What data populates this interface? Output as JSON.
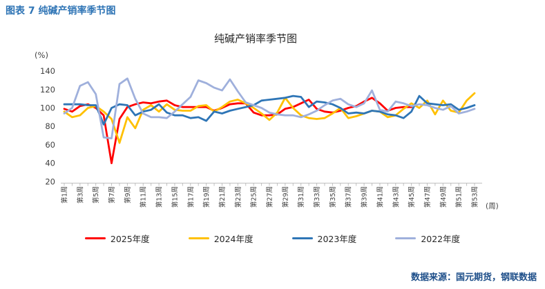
{
  "page": {
    "header": "图表 7 纯碱产销率季节图",
    "source_note": "数据来源：国元期货，钢联数据"
  },
  "colors": {
    "header_blue": "#2E74B5",
    "source_blue": "#1D4E89",
    "axis_gray": "#BFBFBF",
    "tick_text": "#404040",
    "title_text": "#262626"
  },
  "chart_data": {
    "type": "line",
    "title": "纯碱产销率季节图",
    "y_unit_label": "(%)",
    "x_unit_label": "(周)",
    "ylim": [
      20,
      140
    ],
    "y_ticks": [
      20,
      40,
      60,
      80,
      100,
      120,
      140
    ],
    "x_tick_labels": [
      "第1周",
      "第3周",
      "第5周",
      "第7周",
      "第9周",
      "第11周",
      "第13周",
      "第15周",
      "第17周",
      "第19周",
      "第21周",
      "第23周",
      "第25周",
      "第27周",
      "第29周",
      "第31周",
      "第33周",
      "第35周",
      "第37周",
      "第39周",
      "第41周",
      "第43周",
      "第45周",
      "第47周",
      "第49周",
      "第51周",
      "第53周"
    ],
    "x_weeks_total": 53,
    "grid": false,
    "legend_position": "bottom",
    "series": [
      {
        "name": "2025年度",
        "color": "#FF0000",
        "start_week": 1,
        "values": [
          99,
          96,
          102,
          104,
          100,
          92,
          40,
          88,
          101,
          104,
          106,
          105,
          107,
          108,
          103,
          101,
          101,
          101,
          101,
          97,
          100,
          104,
          105,
          105,
          95,
          92,
          92,
          93,
          99,
          101,
          105,
          109,
          99,
          96,
          95,
          97,
          100,
          102,
          107,
          111,
          105,
          97,
          100,
          101,
          101
        ]
      },
      {
        "name": "2024年度",
        "color": "#FFC000",
        "start_week": 1,
        "values": [
          96,
          90,
          92,
          100,
          102,
          96,
          88,
          62,
          90,
          78,
          98,
          103,
          96,
          104,
          98,
          97,
          97,
          102,
          103,
          96,
          101,
          107,
          109,
          105,
          100,
          94,
          87,
          95,
          111,
          100,
          92,
          89,
          88,
          89,
          94,
          100,
          89,
          91,
          94,
          97,
          96,
          90,
          92,
          99,
          105,
          100,
          108,
          93,
          108,
          97,
          95,
          108,
          116
        ]
      },
      {
        "name": "2023年度",
        "color": "#2E75B6",
        "start_week": 1,
        "values": [
          104,
          104,
          104,
          103,
          103,
          82,
          100,
          104,
          103,
          92,
          96,
          98,
          104,
          95,
          92,
          92,
          89,
          90,
          86,
          96,
          94,
          97,
          99,
          101,
          103,
          108,
          109,
          110,
          111,
          113,
          112,
          101,
          107,
          106,
          104,
          100,
          94,
          95,
          94,
          97,
          96,
          93,
          92,
          89,
          96,
          113,
          105,
          104,
          103,
          104,
          98,
          100,
          103
        ]
      },
      {
        "name": "2022年度",
        "color": "#9FB0DC",
        "start_week": 1,
        "values": [
          94,
          100,
          124,
          128,
          115,
          68,
          67,
          126,
          132,
          110,
          94,
          90,
          90,
          89,
          96,
          104,
          112,
          130,
          127,
          122,
          119,
          131,
          118,
          106,
          103,
          100,
          95,
          93,
          92,
          92,
          90,
          93,
          97,
          103,
          108,
          110,
          104,
          101,
          105,
          119,
          98,
          96,
          107,
          105,
          102,
          104,
          103,
          100,
          98,
          102,
          94,
          96,
          99
        ]
      }
    ]
  }
}
